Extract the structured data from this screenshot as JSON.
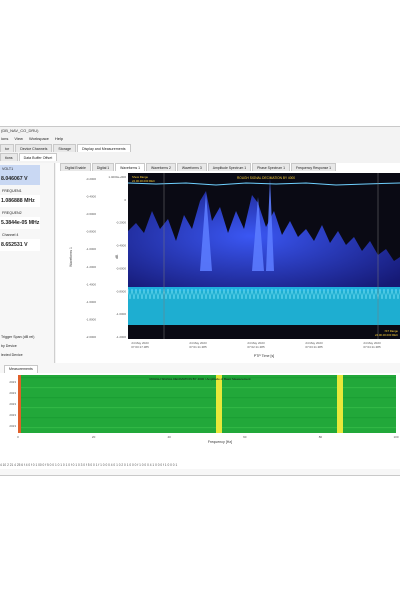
{
  "window": {
    "title": "(DB_NAV_CO_DRU)"
  },
  "menu": [
    "ions",
    "View",
    "Workspace",
    "Help"
  ],
  "main_tabs": [
    {
      "label": "tor",
      "active": false
    },
    {
      "label": "Device Channels",
      "active": false
    },
    {
      "label": "Storage",
      "active": false
    },
    {
      "label": "Display and Measurements",
      "active": true
    }
  ],
  "sub_tabs": [
    {
      "label": "tions",
      "active": false
    },
    {
      "label": "Data Buffer Offset",
      "active": true
    }
  ],
  "measurements": [
    {
      "name": "VOLT1",
      "value": "8.046067 V",
      "selected": true
    },
    {
      "name": "FREQUEN1",
      "value": "1.086888 MHz",
      "selected": false
    },
    {
      "name": "FREQUEN2",
      "value": "5.3844e-05 MHz",
      "selected": false
    },
    {
      "name": "Channel 4",
      "value": "8.652531 V",
      "selected": false
    }
  ],
  "left_footer": [
    "Trigger Span (dB rel)",
    "by Device",
    "lected Device"
  ],
  "display_tabs": [
    {
      "label": "Digital Enable",
      "active": false
    },
    {
      "label": "Digital 1",
      "active": false
    },
    {
      "label": "Waveforms 1",
      "active": true
    },
    {
      "label": "Waveforms 2",
      "active": false
    },
    {
      "label": "Waveforms 3",
      "active": false
    },
    {
      "label": "Amplitude Spectrum 1",
      "active": false
    },
    {
      "label": "Phase Spectrum 1",
      "active": false
    },
    {
      "label": "Frequency Response 1",
      "active": false
    }
  ],
  "waveform_chart": {
    "overlay_title": "ROUGH SIGNAL DECIMATION BY 4000",
    "legend_top": [
      "Show Range",
      "24.00.00.000 REC"
    ],
    "legend_bottom": [
      "IST Range",
      "24.00.00.000 REC"
    ],
    "ylabel": "Waveforms 1",
    "y_unit": "dB",
    "y_ticks": [
      "-0.2000",
      "-0.4000",
      "-0.6000",
      "-0.8000",
      "-1.0000",
      "-1.2000",
      "-1.4000",
      "-1.6000",
      "-1.8000",
      "-2.0000"
    ],
    "y2_ticks": [
      "1.4000e+000",
      "0",
      "-0.2000",
      "-0.4000",
      "-0.6000",
      "-0.8000",
      "-1.0000",
      "-1.2000"
    ],
    "x_ticks": [
      {
        "date": "24 May 2023",
        "time": "07:00:17.385"
      },
      {
        "date": "24 May 2023",
        "time": "07:01:11.385"
      },
      {
        "date": "24 May 2023",
        "time": "07:02:11.385"
      },
      {
        "date": "24 May 2023",
        "time": "07:03:11.385"
      },
      {
        "date": "24 May 2023",
        "time": "07:04:11.385"
      }
    ],
    "xlabel": "PTP Time [s]"
  },
  "lower_tab": "Measurements",
  "spectrogram": {
    "title": "ROUGH SIGNAL DECIMATION BY 4000 / Amplitude of Basic Measurement",
    "y_ticks": [
      "2023",
      "2023",
      "2023",
      "2023",
      "2023"
    ],
    "x_ticks": [
      "0",
      "20",
      "40",
      "60",
      "80",
      "100"
    ],
    "xlabel": "Frequency [Hz]"
  },
  "status_text": "4 10 2 21 4 25 6 f 4 0 f 0 1 00 0 f 5 0 0 1 0 1 0 1 0 f 0 1 0 3 0 f 5 0 0 1 f 1 0 0 0 4 0 1 0 2 0 1 0 0 0 f 1 0 0 0 4 1 0 0 0 f 1 0 0 0 1"
}
